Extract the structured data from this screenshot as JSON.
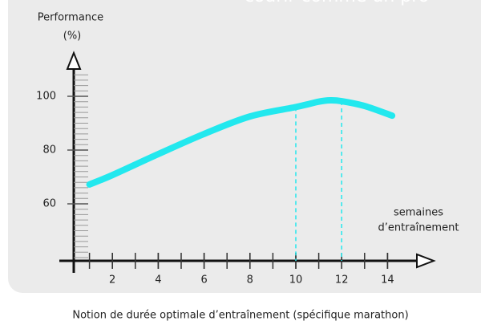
{
  "chart_data": {
    "type": "line",
    "header": "courir comme un pro",
    "caption": "Notion de durée optimale d’entraînement (spécifique marathon)",
    "y_label": [
      "Performance",
      "(%)"
    ],
    "x_label": [
      "semaines",
      "d’entraînement"
    ],
    "x": [
      1,
      2,
      4,
      6,
      8,
      10,
      11,
      11.5,
      12,
      13,
      14.2
    ],
    "series": [
      {
        "color": "#22e8ee",
        "values": [
          67.2,
          70.7,
          78.5,
          86,
          92.5,
          96,
          98,
          98.5,
          98.2,
          96.4,
          92.8
        ]
      }
    ],
    "markers": [
      10,
      12
    ],
    "xlim": [
      0,
      16
    ],
    "xticks": [
      2,
      4,
      6,
      8,
      10,
      12,
      14
    ],
    "ylim": [
      40,
      115
    ],
    "yticks": [
      60,
      80,
      100
    ]
  }
}
